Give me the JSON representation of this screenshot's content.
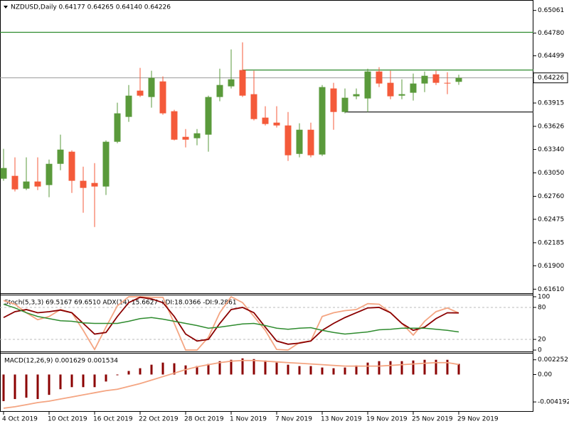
{
  "chart_data": [
    {
      "type": "candlestick",
      "title": "NZDUSD,Daily  0.64177 0.64265 0.64140 0.64226",
      "categories": [
        "4 Oct 2019",
        null,
        null,
        null,
        "10 Oct 2019",
        null,
        null,
        null,
        "16 Oct 2019",
        null,
        null,
        null,
        "22 Oct 2019",
        null,
        null,
        null,
        "28 Oct 2019",
        null,
        null,
        null,
        "1 Nov 2019",
        null,
        null,
        null,
        "7 Nov 2019",
        null,
        null,
        null,
        "13 Nov 2019",
        null,
        null,
        null,
        "19 Nov 2019",
        null,
        null,
        null,
        "25 Nov 2019",
        null,
        null,
        null,
        "29 Nov 2019"
      ],
      "open": [
        0.62978,
        0.63013,
        0.62855,
        0.62943,
        0.62899,
        0.63162,
        0.63312,
        0.62952,
        0.62925,
        0.62881,
        0.63435,
        0.63743,
        0.64068,
        0.63989,
        0.64182,
        0.63813,
        0.63496,
        0.63479,
        0.63523,
        0.63989,
        0.64121,
        0.64323,
        0.64024,
        0.63734,
        0.63672,
        0.63637,
        0.63285,
        0.63584,
        0.63277,
        0.64095,
        0.63804,
        0.63998,
        0.63971,
        0.64305,
        0.64165,
        0.64006,
        0.64042,
        0.64156,
        0.6427,
        0.64165,
        0.64177
      ],
      "high": [
        0.63347,
        0.63242,
        0.63242,
        0.63242,
        0.63215,
        0.63523,
        0.63329,
        0.63127,
        0.63171,
        0.63452,
        0.63919,
        0.64138,
        0.64349,
        0.64314,
        0.64244,
        0.63831,
        0.63593,
        0.63593,
        0.64006,
        0.6434,
        0.64578,
        0.64666,
        0.64314,
        0.63875,
        0.63875,
        0.63804,
        0.63664,
        0.63672,
        0.64138,
        0.64165,
        0.64095,
        0.64095,
        0.6434,
        0.64358,
        0.64314,
        0.64208,
        0.64279,
        0.64305,
        0.64314,
        0.64296,
        0.64265
      ],
      "low": [
        0.62952,
        0.6282,
        0.62837,
        0.62837,
        0.62749,
        0.63083,
        0.62802,
        0.62556,
        0.6238,
        0.62776,
        0.63417,
        0.63681,
        0.63989,
        0.63857,
        0.63769,
        0.63452,
        0.63365,
        0.63391,
        0.63312,
        0.63936,
        0.64095,
        0.63989,
        0.63699,
        0.63637,
        0.63611,
        0.63198,
        0.63242,
        0.63242,
        0.63259,
        0.63584,
        0.63787,
        0.63962,
        0.63804,
        0.64112,
        0.63962,
        0.63962,
        0.63945,
        0.6405,
        0.64138,
        0.64024,
        0.6414
      ],
      "close": [
        0.6311,
        0.62846,
        0.62943,
        0.62881,
        0.63162,
        0.63338,
        0.62952,
        0.62864,
        0.62881,
        0.63435,
        0.63787,
        0.64006,
        0.64006,
        0.64226,
        0.63787,
        0.63461,
        0.63461,
        0.6354,
        0.63989,
        0.64138,
        0.64208,
        0.64006,
        0.63716,
        0.63655,
        0.63637,
        0.63268,
        0.63584,
        0.63268,
        0.64112,
        0.63804,
        0.6398,
        0.64024,
        0.64305,
        0.64156,
        0.63998,
        0.64024,
        0.64156,
        0.64252,
        0.64165,
        0.64156,
        0.64226
      ],
      "up_color": "#5a9a3b",
      "down_color": "#f45a3a",
      "lines": [
        {
          "value": 0.6479,
          "color": "#2e8b2e",
          "from": 0
        },
        {
          "value": 0.64323,
          "color": "#2e8b2e",
          "from": 21
        },
        {
          "value": 0.63804,
          "color": "#333333",
          "from": 30
        }
      ],
      "ylim": [
        0.6156,
        0.6519
      ],
      "yticks": [
        0.65061,
        {
          "value": 0.6478,
          "label": "0.64780"
        },
        0.64499,
        0.63915,
        0.63626,
        {
          "value": 0.6334,
          "label": "0.63340"
        },
        {
          "value": 0.6305,
          "label": "0.63050"
        },
        {
          "value": 0.6276,
          "label": "0.62760"
        },
        0.62475,
        0.62185,
        {
          "value": 0.619,
          "label": "0.61900"
        },
        {
          "value": 0.6161,
          "label": "0.61610"
        }
      ]
    },
    {
      "type": "line",
      "title": "Stoch(5,3,3) 69.5167 69.6510  ADX(14) 15.6627 +DI:18.0366 -DI:9.2861",
      "series": [
        {
          "color": "#f4a582",
          "values": [
            93,
            86,
            70,
            57,
            63,
            76,
            70,
            37,
            1,
            43,
            83,
            100,
            100,
            99,
            99,
            50,
            0,
            0,
            24,
            70,
            100,
            89,
            63,
            37,
            1,
            0,
            14,
            17,
            63,
            70,
            74,
            76,
            87,
            86,
            70,
            50,
            28,
            54,
            72,
            79,
            69.5167
          ]
        },
        {
          "color": "#8b0000",
          "values": [
            61,
            72,
            76,
            70,
            72,
            75,
            70,
            50,
            30,
            33,
            63,
            89,
            99,
            96,
            89,
            63,
            30,
            17,
            20,
            50,
            76,
            80,
            70,
            43,
            17,
            11,
            13,
            17,
            37,
            50,
            61,
            70,
            79,
            80,
            70,
            50,
            37,
            43,
            59,
            70,
            69.651
          ]
        },
        {
          "color": "#2e8b2e",
          "values": [
            86,
            79,
            70,
            63,
            59,
            55,
            54,
            51,
            50,
            50,
            50,
            54,
            59,
            61,
            58,
            54,
            50,
            46,
            41,
            43,
            46,
            49,
            50,
            46,
            41,
            39,
            41,
            42,
            37,
            33,
            30,
            32,
            34,
            38,
            39,
            41,
            41,
            41,
            39,
            37,
            34
          ]
        }
      ],
      "levels": [
        80,
        20
      ],
      "ylim": [
        -2.6,
        102.6
      ],
      "yticks": [
        100,
        80,
        20,
        0
      ]
    },
    {
      "type": "macd",
      "title": "MACD(12,26,9) 0.001629 0.001534",
      "series": [
        {
          "color": "#8b0000",
          "values": [
            -0.00407,
            -0.00375,
            -0.00354,
            -0.00375,
            -0.00311,
            -0.00225,
            -0.00193,
            -0.00193,
            -0.00193,
            -0.00107,
            -0.00011,
            0.00054,
            0.00096,
            0.0015,
            0.00182,
            0.00172,
            0.00139,
            0.00129,
            0.00161,
            0.00204,
            0.00225,
            0.00247,
            0.00236,
            0.00214,
            0.00182,
            0.0015,
            0.00129,
            0.00129,
            0.00107,
            0.00096,
            0.00107,
            0.00139,
            0.00182,
            0.00204,
            0.00204,
            0.00204,
            0.00214,
            0.00225,
            0.00225,
            0.00225,
            0.001629
          ]
        },
        {
          "color": "#f4a582",
          "values": [
            -0.00515,
            -0.00493,
            -0.00461,
            -0.00429,
            -0.00407,
            -0.00375,
            -0.00343,
            -0.00311,
            -0.00279,
            -0.00247,
            -0.00225,
            -0.00182,
            -0.00139,
            -0.00086,
            -0.00032,
            0.00021,
            0.00075,
            0.00118,
            0.0015,
            0.00182,
            0.00204,
            0.00214,
            0.00214,
            0.00204,
            0.00193,
            0.00182,
            0.00172,
            0.00161,
            0.0015,
            0.00139,
            0.00129,
            0.00129,
            0.00129,
            0.00129,
            0.00139,
            0.0015,
            0.00161,
            0.00172,
            0.00182,
            0.00182,
            0.001534
          ]
        }
      ],
      "ylim": [
        -0.0057,
        0.0032
      ],
      "yticks": [
        0.002252,
        {
          "value": 0,
          "label": "0.00"
        },
        -0.004192
      ]
    }
  ]
}
